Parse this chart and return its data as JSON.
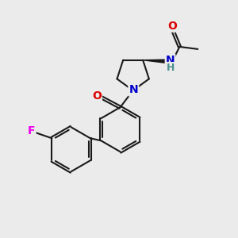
{
  "background_color": "#ebebeb",
  "bond_color": "#1a1a1a",
  "dbo": 0.055,
  "atom_colors": {
    "O": "#dd0000",
    "N": "#0000cc",
    "F": "#ee00ee",
    "H": "#4a9090",
    "C": "#1a1a1a"
  },
  "fs": 9.5
}
